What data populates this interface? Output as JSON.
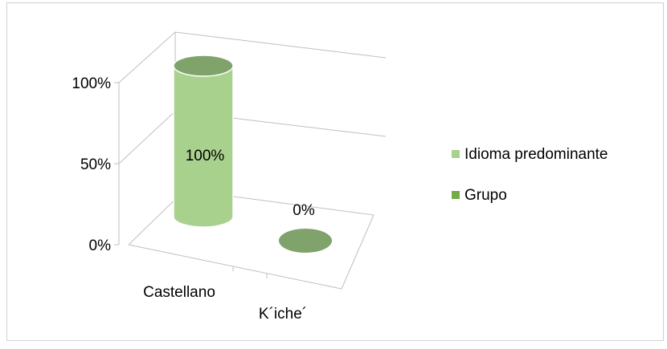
{
  "chart_data": {
    "type": "cylinder",
    "categories": [
      "Castellano",
      "K´iche´"
    ],
    "series": [
      {
        "name": "Idioma predominante",
        "color": "#a9d18e",
        "values": [
          100,
          0
        ],
        "value_labels": [
          "100%",
          "0%"
        ]
      },
      {
        "name": "Grupo",
        "color": "#70ad47",
        "values": [
          null,
          null
        ]
      }
    ],
    "ylim": [
      0,
      100
    ],
    "yticks": [
      {
        "value": 0,
        "label": "0%"
      },
      {
        "value": 50,
        "label": "50%"
      },
      {
        "value": 100,
        "label": "100%"
      }
    ],
    "grid": true,
    "legend": "right"
  }
}
